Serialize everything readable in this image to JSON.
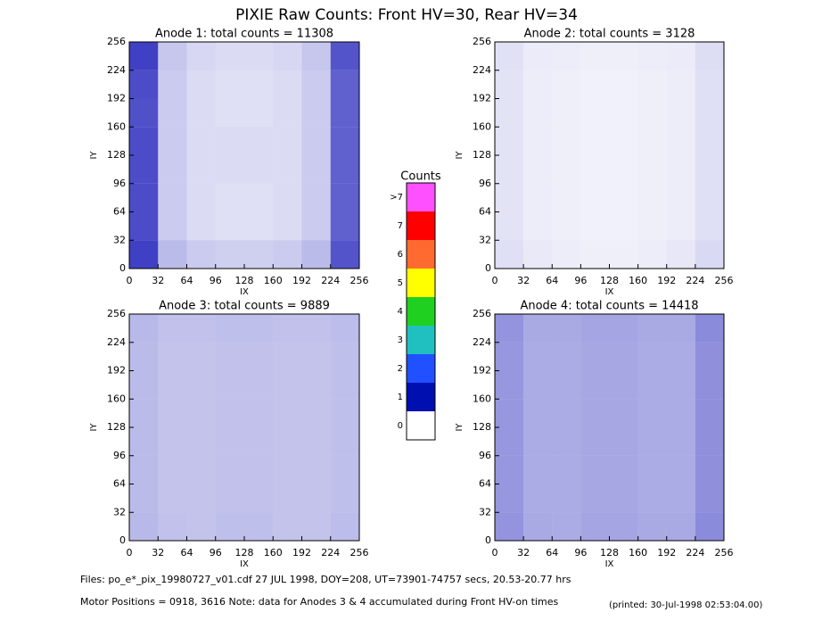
{
  "title": "PIXIE Raw Counts:  Front HV=30, Rear HV=34",
  "chart_data": [
    {
      "type": "heatmap",
      "title": "Anode 1: total counts = 11308",
      "x_label": "IX",
      "y_label": "IY",
      "color": "#0000b0",
      "xlim": [
        0,
        256
      ],
      "ylim": [
        0,
        256
      ],
      "xticks": [
        0,
        32,
        64,
        96,
        128,
        160,
        192,
        224,
        256
      ],
      "yticks": [
        0,
        32,
        64,
        96,
        128,
        160,
        192,
        224,
        256
      ],
      "z": [
        [
          480,
          170,
          130,
          120,
          120,
          130,
          170,
          430
        ],
        [
          450,
          130,
          90,
          80,
          80,
          90,
          130,
          400
        ],
        [
          450,
          130,
          90,
          80,
          80,
          90,
          130,
          400
        ],
        [
          450,
          130,
          90,
          90,
          90,
          90,
          130,
          400
        ],
        [
          450,
          130,
          90,
          90,
          90,
          90,
          130,
          400
        ],
        [
          440,
          130,
          90,
          80,
          80,
          90,
          130,
          400
        ],
        [
          450,
          130,
          90,
          80,
          80,
          90,
          130,
          400
        ],
        [
          480,
          140,
          100,
          90,
          90,
          100,
          140,
          430
        ]
      ]
    },
    {
      "type": "heatmap",
      "title": "Anode 2: total counts = 3128",
      "x_label": "IX",
      "y_label": "IY",
      "color": "#0000b0",
      "xlim": [
        0,
        256
      ],
      "ylim": [
        0,
        256
      ],
      "xticks": [
        0,
        32,
        64,
        96,
        128,
        160,
        192,
        224,
        256
      ],
      "yticks": [
        0,
        32,
        64,
        96,
        128,
        160,
        192,
        224,
        256
      ],
      "z": [
        [
          80,
          55,
          45,
          40,
          40,
          45,
          60,
          95
        ],
        [
          70,
          45,
          40,
          35,
          35,
          40,
          45,
          80
        ],
        [
          70,
          45,
          40,
          35,
          35,
          40,
          45,
          80
        ],
        [
          70,
          45,
          40,
          35,
          35,
          40,
          45,
          80
        ],
        [
          70,
          45,
          40,
          35,
          35,
          40,
          45,
          80
        ],
        [
          70,
          45,
          40,
          35,
          35,
          40,
          45,
          80
        ],
        [
          70,
          45,
          40,
          35,
          35,
          40,
          45,
          80
        ],
        [
          75,
          50,
          45,
          40,
          40,
          45,
          50,
          85
        ]
      ]
    },
    {
      "type": "heatmap",
      "title": "Anode 3: total counts = 9889",
      "x_label": "IX",
      "y_label": "IY",
      "color": "#0000b0",
      "xlim": [
        0,
        256
      ],
      "ylim": [
        0,
        256
      ],
      "xticks": [
        0,
        32,
        64,
        96,
        128,
        160,
        192,
        224,
        256
      ],
      "yticks": [
        0,
        32,
        64,
        96,
        128,
        160,
        192,
        224,
        256
      ],
      "z": [
        [
          175,
          155,
          150,
          160,
          160,
          150,
          150,
          165
        ],
        [
          170,
          150,
          150,
          155,
          155,
          150,
          150,
          160
        ],
        [
          170,
          150,
          150,
          155,
          155,
          150,
          150,
          160
        ],
        [
          170,
          150,
          150,
          155,
          155,
          150,
          150,
          160
        ],
        [
          170,
          150,
          150,
          155,
          155,
          150,
          150,
          160
        ],
        [
          170,
          150,
          150,
          155,
          155,
          150,
          150,
          160
        ],
        [
          170,
          150,
          150,
          155,
          155,
          150,
          150,
          160
        ],
        [
          175,
          155,
          155,
          160,
          160,
          155,
          155,
          165
        ]
      ]
    },
    {
      "type": "heatmap",
      "title": "Anode 4: total counts = 14418",
      "x_label": "IX",
      "y_label": "IY",
      "color": "#0000b0",
      "xlim": [
        0,
        256
      ],
      "ylim": [
        0,
        256
      ],
      "xticks": [
        0,
        32,
        64,
        96,
        128,
        160,
        192,
        224,
        256
      ],
      "yticks": [
        0,
        32,
        64,
        96,
        128,
        160,
        192,
        224,
        256
      ],
      "z": [
        [
          270,
          215,
          210,
          225,
          225,
          215,
          215,
          290
        ],
        [
          260,
          210,
          210,
          220,
          220,
          210,
          210,
          280
        ],
        [
          260,
          210,
          210,
          220,
          220,
          210,
          210,
          280
        ],
        [
          260,
          210,
          210,
          220,
          220,
          210,
          210,
          280
        ],
        [
          260,
          210,
          210,
          220,
          220,
          210,
          210,
          280
        ],
        [
          260,
          210,
          210,
          220,
          220,
          210,
          210,
          280
        ],
        [
          260,
          210,
          210,
          220,
          220,
          210,
          210,
          280
        ],
        [
          270,
          215,
          215,
          225,
          225,
          215,
          215,
          290
        ]
      ]
    }
  ],
  "colorbar": {
    "title": "Counts",
    "labels": [
      "0",
      "1",
      "2",
      "3",
      "4",
      "5",
      "6",
      "7",
      ">7"
    ],
    "colors": [
      "#ffffff",
      "#0010b0",
      "#2050ff",
      "#20c0c0",
      "#20d020",
      "#ffff00",
      "#ff6a30",
      "#ff0000",
      "#ff50ff"
    ]
  },
  "footer": {
    "files": "Files: po_e*_pix_19980727_v01.cdf    27 JUL 1998, DOY=208, UT=73901-74757 secs, 20.53-20.77 hrs",
    "motor": "Motor Positions = 0918, 3616    Note: data for Anodes 3 & 4 accumulated during Front HV-on times",
    "printed": "(printed: 30-Jul-1998 02:53:04.00)"
  }
}
